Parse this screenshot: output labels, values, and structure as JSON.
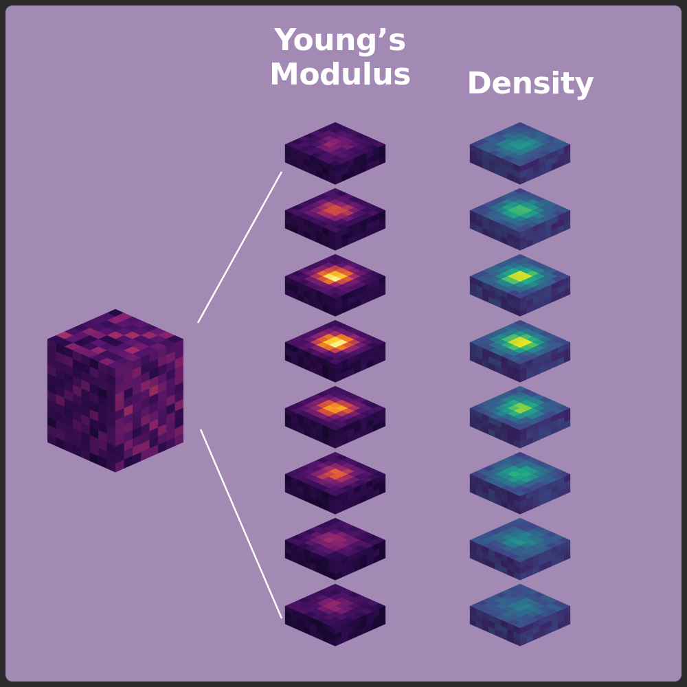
{
  "titles": {
    "modulus": "Young’s Modulus",
    "density": "Density"
  },
  "colors": {
    "background": "#a38ab4",
    "connector": "#ffffff",
    "modulus_colormap": "inferno",
    "density_colormap": "viridis"
  },
  "diagram": {
    "volume": {
      "grid": 8,
      "description_tag": "voxel-cube",
      "pattern": [
        0.2,
        0.35,
        0.42,
        0.3,
        0.25,
        0.38,
        0.45,
        0.22
      ]
    },
    "slice_count": 8,
    "slices": [
      {
        "index": 1,
        "modulus_peak": 0.3,
        "density_peak": 0.4
      },
      {
        "index": 2,
        "modulus_peak": 0.62,
        "density_peak": 0.7
      },
      {
        "index": 3,
        "modulus_peak": 0.92,
        "density_peak": 0.88
      },
      {
        "index": 4,
        "modulus_peak": 0.96,
        "density_peak": 0.9
      },
      {
        "index": 5,
        "modulus_peak": 0.78,
        "density_peak": 0.76
      },
      {
        "index": 6,
        "modulus_peak": 0.6,
        "density_peak": 0.58
      },
      {
        "index": 7,
        "modulus_peak": 0.4,
        "density_peak": 0.35
      },
      {
        "index": 8,
        "modulus_peak": 0.3,
        "density_peak": 0.25
      }
    ]
  }
}
